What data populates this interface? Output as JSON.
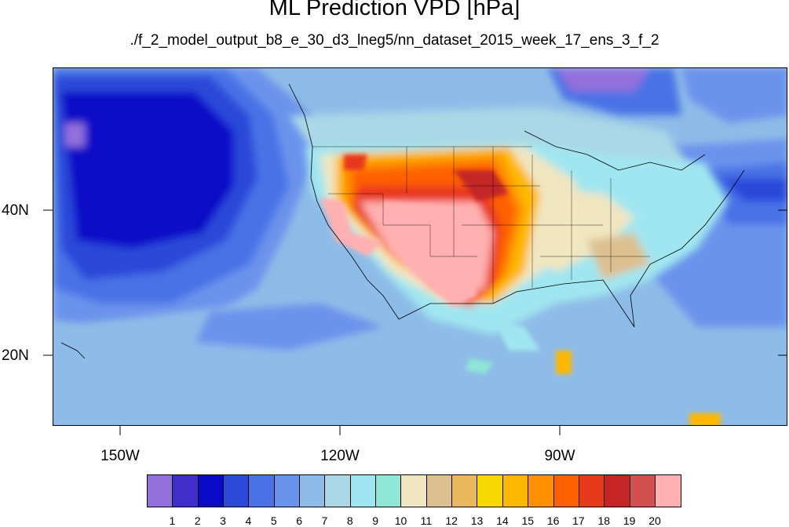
{
  "title": "ML Prediction VPD [hPa]",
  "subtitle": "./f_2_model_output_b8_e_30_d3_lneg5/nn_dataset_2015_week_17_ens_3_f_2",
  "axes": {
    "y_labels": [
      "40N",
      "20N"
    ],
    "x_labels": [
      "150W",
      "120W",
      "90W"
    ]
  },
  "legend": {
    "labels": [
      "1",
      "2",
      "3",
      "4",
      "5",
      "6",
      "7",
      "8",
      "9",
      "10",
      "11",
      "12",
      "13",
      "14",
      "15",
      "16",
      "17",
      "18",
      "19",
      "20"
    ],
    "colors": [
      "#9370db",
      "#3f2fc8",
      "#0a0ac8",
      "#2c4ad9",
      "#4a72e6",
      "#6a93ec",
      "#8ebce8",
      "#aad8e6",
      "#a0e6f0",
      "#8ee6d6",
      "#f0e6c0",
      "#ddc090",
      "#e8b85a",
      "#f8d800",
      "#ffb800",
      "#ff9000",
      "#ff6000",
      "#e8391a",
      "#c42626",
      "#d25050",
      "#ffb0b0"
    ]
  },
  "icons": {
    "coastlines": "coastline-lines",
    "state_borders": "state-border-lines"
  }
}
